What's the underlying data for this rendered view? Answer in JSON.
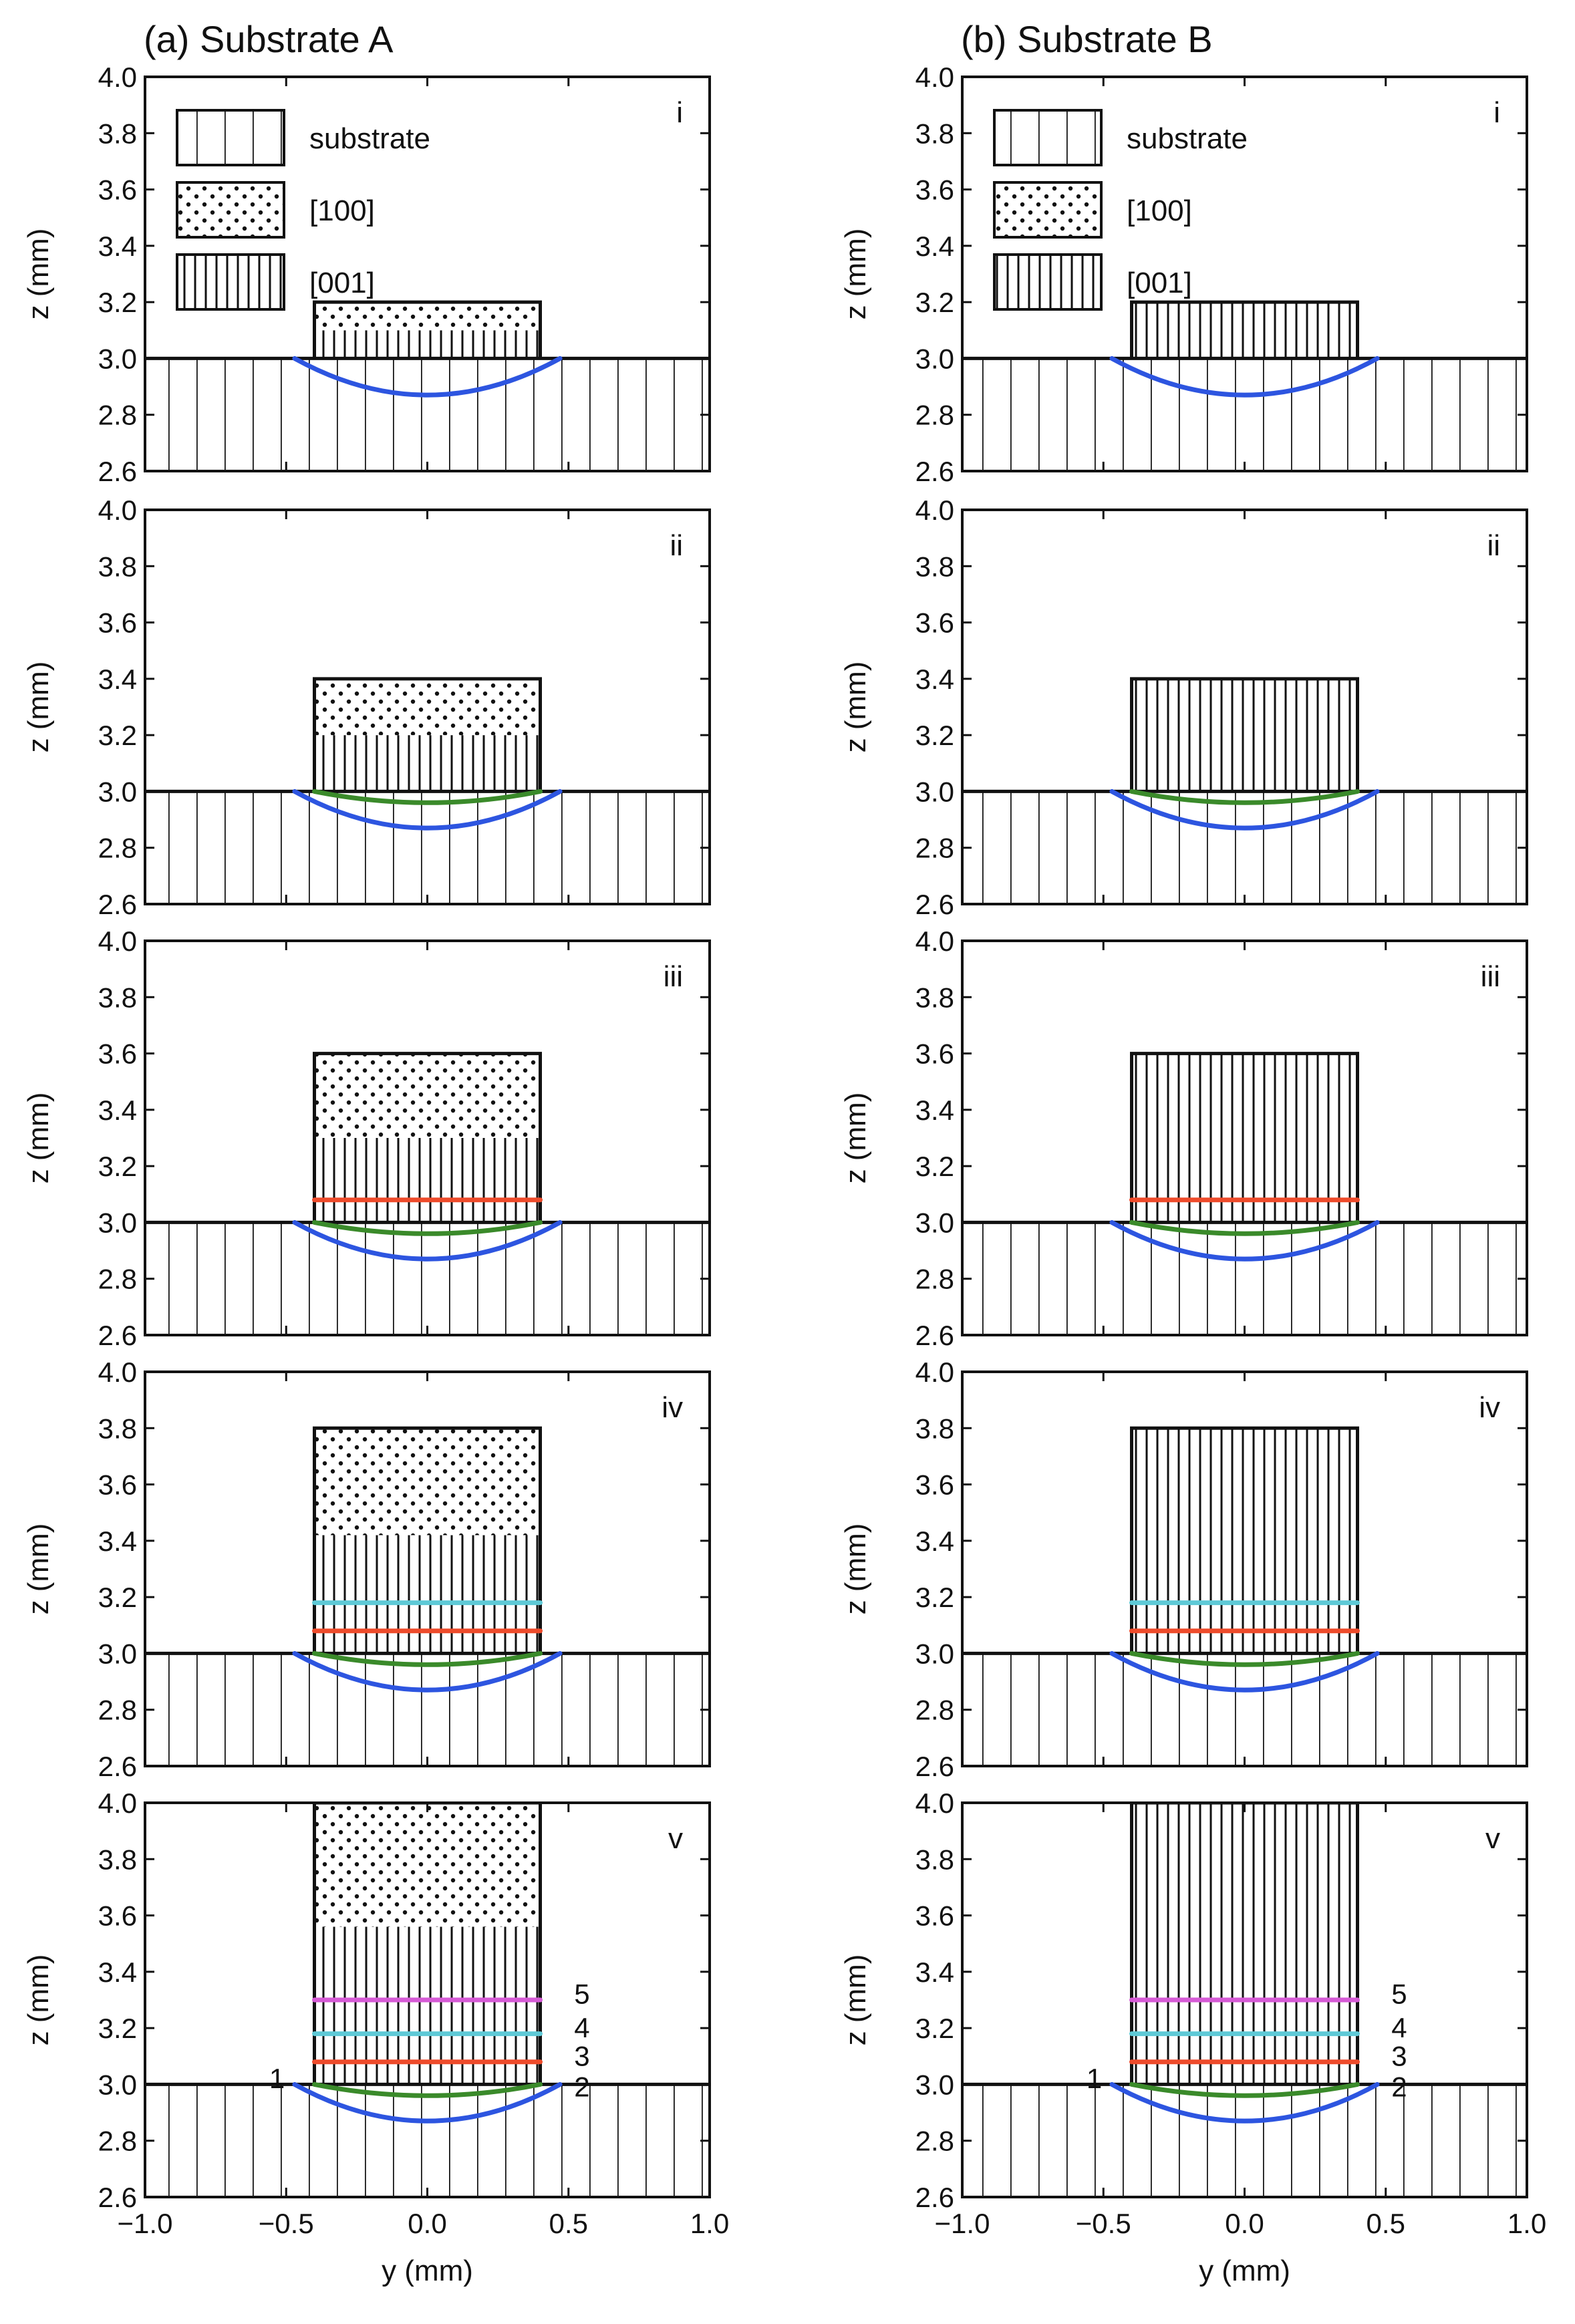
{
  "figure": {
    "columns": [
      {
        "title": "(a) Substrate A",
        "substrate": "A"
      },
      {
        "title": "(b) Substrate B",
        "substrate": "B"
      }
    ],
    "legend": [
      {
        "label": "substrate",
        "pattern": "substrate-vertical-wide"
      },
      {
        "label": "[100]",
        "pattern": "dots"
      },
      {
        "label": "[001]",
        "pattern": "vertical-dense"
      }
    ],
    "colors": {
      "line_1": "#2d55e0",
      "line_2": "#3a8a2a",
      "line_3": "#ee4b2b",
      "line_4": "#5ec9d6",
      "line_5": "#d65ad6"
    }
  },
  "chart_data": [
    {
      "type": "line",
      "column": "a",
      "row": "i",
      "panel_label": "i",
      "title": "",
      "xlabel": "",
      "ylabel": "z (mm)",
      "xlim": [
        -1.0,
        1.0
      ],
      "ylim": [
        2.6,
        4.0
      ],
      "xticks": [],
      "yticks": [
        "2.6",
        "2.8",
        "3.0",
        "3.2",
        "3.4",
        "3.6",
        "3.8",
        "4.0"
      ],
      "substrate_surface_z": 3.0,
      "deposit": {
        "y_range": [
          -0.4,
          0.4
        ],
        "top_z": 3.2,
        "layers": [
          {
            "pattern": "vertical-dense",
            "z": [
              3.0,
              3.1
            ]
          },
          {
            "pattern": "dots",
            "z": [
              3.1,
              3.2
            ]
          }
        ]
      },
      "series": [
        {
          "name": "",
          "color_key": "line_1",
          "x": [
            -0.47,
            -0.3,
            0.0,
            0.3,
            0.47
          ],
          "y": [
            3.0,
            2.91,
            2.87,
            2.91,
            3.0
          ]
        }
      ],
      "point_labels": []
    },
    {
      "type": "line",
      "column": "a",
      "row": "ii",
      "panel_label": "ii",
      "title": "",
      "xlabel": "",
      "ylabel": "z (mm)",
      "xlim": [
        -1.0,
        1.0
      ],
      "ylim": [
        2.6,
        4.0
      ],
      "xticks": [],
      "yticks": [
        "2.6",
        "2.8",
        "3.0",
        "3.2",
        "3.4",
        "3.6",
        "3.8",
        "4.0"
      ],
      "substrate_surface_z": 3.0,
      "deposit": {
        "y_range": [
          -0.4,
          0.4
        ],
        "top_z": 3.4,
        "layers": [
          {
            "pattern": "vertical-dense",
            "z": [
              3.0,
              3.2
            ]
          },
          {
            "pattern": "dots",
            "z": [
              3.2,
              3.4
            ]
          }
        ]
      },
      "series": [
        {
          "name": "",
          "color_key": "line_1",
          "x": [
            -0.47,
            -0.3,
            0.0,
            0.3,
            0.47
          ],
          "y": [
            3.0,
            2.91,
            2.87,
            2.91,
            3.0
          ]
        },
        {
          "name": "",
          "color_key": "line_2",
          "x": [
            -0.4,
            -0.2,
            0.0,
            0.2,
            0.4
          ],
          "y": [
            3.0,
            2.97,
            2.96,
            2.97,
            3.0
          ]
        }
      ],
      "point_labels": []
    },
    {
      "type": "line",
      "column": "a",
      "row": "iii",
      "panel_label": "iii",
      "title": "",
      "xlabel": "",
      "ylabel": "z (mm)",
      "xlim": [
        -1.0,
        1.0
      ],
      "ylim": [
        2.6,
        4.0
      ],
      "xticks": [],
      "yticks": [
        "2.6",
        "2.8",
        "3.0",
        "3.2",
        "3.4",
        "3.6",
        "3.8",
        "4.0"
      ],
      "substrate_surface_z": 3.0,
      "deposit": {
        "y_range": [
          -0.4,
          0.4
        ],
        "top_z": 3.6,
        "layers": [
          {
            "pattern": "vertical-dense",
            "z": [
              3.0,
              3.3
            ]
          },
          {
            "pattern": "dots",
            "z": [
              3.3,
              3.6
            ]
          }
        ]
      },
      "series": [
        {
          "name": "",
          "color_key": "line_1",
          "x": [
            -0.47,
            -0.3,
            0.0,
            0.3,
            0.47
          ],
          "y": [
            3.0,
            2.91,
            2.87,
            2.91,
            3.0
          ]
        },
        {
          "name": "",
          "color_key": "line_2",
          "x": [
            -0.4,
            -0.2,
            0.0,
            0.2,
            0.4
          ],
          "y": [
            3.0,
            2.97,
            2.96,
            2.97,
            3.0
          ]
        },
        {
          "name": "",
          "color_key": "line_3",
          "x": [
            -0.4,
            0.4
          ],
          "y": [
            3.08,
            3.08
          ]
        }
      ],
      "point_labels": []
    },
    {
      "type": "line",
      "column": "a",
      "row": "iv",
      "panel_label": "iv",
      "title": "",
      "xlabel": "",
      "ylabel": "z (mm)",
      "xlim": [
        -1.0,
        1.0
      ],
      "ylim": [
        2.6,
        4.0
      ],
      "xticks": [],
      "yticks": [
        "2.6",
        "2.8",
        "3.0",
        "3.2",
        "3.4",
        "3.6",
        "3.8",
        "4.0"
      ],
      "substrate_surface_z": 3.0,
      "deposit": {
        "y_range": [
          -0.4,
          0.4
        ],
        "top_z": 3.8,
        "layers": [
          {
            "pattern": "vertical-dense",
            "z": [
              3.0,
              3.42
            ]
          },
          {
            "pattern": "dots",
            "z": [
              3.42,
              3.8
            ]
          }
        ]
      },
      "series": [
        {
          "name": "",
          "color_key": "line_1",
          "x": [
            -0.47,
            -0.3,
            0.0,
            0.3,
            0.47
          ],
          "y": [
            3.0,
            2.91,
            2.87,
            2.91,
            3.0
          ]
        },
        {
          "name": "",
          "color_key": "line_2",
          "x": [
            -0.4,
            -0.2,
            0.0,
            0.2,
            0.4
          ],
          "y": [
            3.0,
            2.97,
            2.96,
            2.97,
            3.0
          ]
        },
        {
          "name": "",
          "color_key": "line_3",
          "x": [
            -0.4,
            0.4
          ],
          "y": [
            3.08,
            3.08
          ]
        },
        {
          "name": "",
          "color_key": "line_4",
          "x": [
            -0.4,
            0.4
          ],
          "y": [
            3.18,
            3.18
          ]
        }
      ],
      "point_labels": []
    },
    {
      "type": "line",
      "column": "a",
      "row": "v",
      "panel_label": "v",
      "title": "",
      "xlabel": "y (mm)",
      "ylabel": "z (mm)",
      "xlim": [
        -1.0,
        1.0
      ],
      "ylim": [
        2.6,
        4.0
      ],
      "xticks": [
        "−1.0",
        "−0.5",
        "0.0",
        "0.5",
        "1.0"
      ],
      "yticks": [
        "2.6",
        "2.8",
        "3.0",
        "3.2",
        "3.4",
        "3.6",
        "3.8",
        "4.0"
      ],
      "substrate_surface_z": 3.0,
      "deposit": {
        "y_range": [
          -0.4,
          0.4
        ],
        "top_z": 4.0,
        "layers": [
          {
            "pattern": "vertical-dense",
            "z": [
              3.0,
              3.56
            ]
          },
          {
            "pattern": "dots",
            "z": [
              3.56,
              4.0
            ]
          }
        ]
      },
      "series": [
        {
          "name": "",
          "color_key": "line_1",
          "x": [
            -0.47,
            -0.3,
            0.0,
            0.3,
            0.47
          ],
          "y": [
            3.0,
            2.91,
            2.87,
            2.91,
            3.0
          ]
        },
        {
          "name": "",
          "color_key": "line_2",
          "x": [
            -0.4,
            -0.2,
            0.0,
            0.2,
            0.4
          ],
          "y": [
            3.0,
            2.97,
            2.96,
            2.97,
            3.0
          ]
        },
        {
          "name": "",
          "color_key": "line_3",
          "x": [
            -0.4,
            0.4
          ],
          "y": [
            3.08,
            3.08
          ]
        },
        {
          "name": "",
          "color_key": "line_4",
          "x": [
            -0.4,
            0.4
          ],
          "y": [
            3.18,
            3.18
          ]
        },
        {
          "name": "",
          "color_key": "line_5",
          "x": [
            -0.4,
            0.4
          ],
          "y": [
            3.3,
            3.3
          ]
        }
      ],
      "point_labels": [
        {
          "text": "1",
          "x": -0.56,
          "y": 3.02
        },
        {
          "text": "2",
          "x": 0.52,
          "y": 2.99
        },
        {
          "text": "3",
          "x": 0.52,
          "y": 3.1
        },
        {
          "text": "4",
          "x": 0.52,
          "y": 3.2
        },
        {
          "text": "5",
          "x": 0.52,
          "y": 3.32
        }
      ]
    },
    {
      "type": "line",
      "column": "b",
      "row": "i",
      "panel_label": "i",
      "title": "",
      "xlabel": "",
      "ylabel": "z (mm)",
      "xlim": [
        -1.0,
        1.0
      ],
      "ylim": [
        2.6,
        4.0
      ],
      "xticks": [],
      "yticks": [
        "2.6",
        "2.8",
        "3.0",
        "3.2",
        "3.4",
        "3.6",
        "3.8",
        "4.0"
      ],
      "substrate_surface_z": 3.0,
      "deposit": {
        "y_range": [
          -0.4,
          0.4
        ],
        "top_z": 3.2,
        "layers": [
          {
            "pattern": "vertical-dense",
            "z": [
              3.0,
              3.2
            ]
          }
        ]
      },
      "series": [
        {
          "name": "",
          "color_key": "line_1",
          "x": [
            -0.47,
            -0.3,
            0.0,
            0.3,
            0.47
          ],
          "y": [
            3.0,
            2.91,
            2.87,
            2.91,
            3.0
          ]
        }
      ],
      "point_labels": []
    },
    {
      "type": "line",
      "column": "b",
      "row": "ii",
      "panel_label": "ii",
      "title": "",
      "xlabel": "",
      "ylabel": "z (mm)",
      "xlim": [
        -1.0,
        1.0
      ],
      "ylim": [
        2.6,
        4.0
      ],
      "xticks": [],
      "yticks": [
        "2.6",
        "2.8",
        "3.0",
        "3.2",
        "3.4",
        "3.6",
        "3.8",
        "4.0"
      ],
      "substrate_surface_z": 3.0,
      "deposit": {
        "y_range": [
          -0.4,
          0.4
        ],
        "top_z": 3.4,
        "layers": [
          {
            "pattern": "vertical-dense",
            "z": [
              3.0,
              3.4
            ]
          }
        ]
      },
      "series": [
        {
          "name": "",
          "color_key": "line_1",
          "x": [
            -0.47,
            -0.3,
            0.0,
            0.3,
            0.47
          ],
          "y": [
            3.0,
            2.91,
            2.87,
            2.91,
            3.0
          ]
        },
        {
          "name": "",
          "color_key": "line_2",
          "x": [
            -0.4,
            -0.2,
            0.0,
            0.2,
            0.4
          ],
          "y": [
            3.0,
            2.97,
            2.96,
            2.97,
            3.0
          ]
        }
      ],
      "point_labels": []
    },
    {
      "type": "line",
      "column": "b",
      "row": "iii",
      "panel_label": "iii",
      "title": "",
      "xlabel": "",
      "ylabel": "z (mm)",
      "xlim": [
        -1.0,
        1.0
      ],
      "ylim": [
        2.6,
        4.0
      ],
      "xticks": [],
      "yticks": [
        "2.6",
        "2.8",
        "3.0",
        "3.2",
        "3.4",
        "3.6",
        "3.8",
        "4.0"
      ],
      "substrate_surface_z": 3.0,
      "deposit": {
        "y_range": [
          -0.4,
          0.4
        ],
        "top_z": 3.6,
        "layers": [
          {
            "pattern": "vertical-dense",
            "z": [
              3.0,
              3.6
            ]
          }
        ]
      },
      "series": [
        {
          "name": "",
          "color_key": "line_1",
          "x": [
            -0.47,
            -0.3,
            0.0,
            0.3,
            0.47
          ],
          "y": [
            3.0,
            2.91,
            2.87,
            2.91,
            3.0
          ]
        },
        {
          "name": "",
          "color_key": "line_2",
          "x": [
            -0.4,
            -0.2,
            0.0,
            0.2,
            0.4
          ],
          "y": [
            3.0,
            2.97,
            2.96,
            2.97,
            3.0
          ]
        },
        {
          "name": "",
          "color_key": "line_3",
          "x": [
            -0.4,
            0.4
          ],
          "y": [
            3.08,
            3.08
          ]
        }
      ],
      "point_labels": []
    },
    {
      "type": "line",
      "column": "b",
      "row": "iv",
      "panel_label": "iv",
      "title": "",
      "xlabel": "",
      "ylabel": "z (mm)",
      "xlim": [
        -1.0,
        1.0
      ],
      "ylim": [
        2.6,
        4.0
      ],
      "xticks": [],
      "yticks": [
        "2.6",
        "2.8",
        "3.0",
        "3.2",
        "3.4",
        "3.6",
        "3.8",
        "4.0"
      ],
      "substrate_surface_z": 3.0,
      "deposit": {
        "y_range": [
          -0.4,
          0.4
        ],
        "top_z": 3.8,
        "layers": [
          {
            "pattern": "vertical-dense",
            "z": [
              3.0,
              3.8
            ]
          }
        ]
      },
      "series": [
        {
          "name": "",
          "color_key": "line_1",
          "x": [
            -0.47,
            -0.3,
            0.0,
            0.3,
            0.47
          ],
          "y": [
            3.0,
            2.91,
            2.87,
            2.91,
            3.0
          ]
        },
        {
          "name": "",
          "color_key": "line_2",
          "x": [
            -0.4,
            -0.2,
            0.0,
            0.2,
            0.4
          ],
          "y": [
            3.0,
            2.97,
            2.96,
            2.97,
            3.0
          ]
        },
        {
          "name": "",
          "color_key": "line_3",
          "x": [
            -0.4,
            0.4
          ],
          "y": [
            3.08,
            3.08
          ]
        },
        {
          "name": "",
          "color_key": "line_4",
          "x": [
            -0.4,
            0.4
          ],
          "y": [
            3.18,
            3.18
          ]
        }
      ],
      "point_labels": []
    },
    {
      "type": "line",
      "column": "b",
      "row": "v",
      "panel_label": "v",
      "title": "",
      "xlabel": "y (mm)",
      "ylabel": "z (mm)",
      "xlim": [
        -1.0,
        1.0
      ],
      "ylim": [
        2.6,
        4.0
      ],
      "xticks": [
        "−1.0",
        "−0.5",
        "0.0",
        "0.5",
        "1.0"
      ],
      "yticks": [
        "2.6",
        "2.8",
        "3.0",
        "3.2",
        "3.4",
        "3.6",
        "3.8",
        "4.0"
      ],
      "substrate_surface_z": 3.0,
      "deposit": {
        "y_range": [
          -0.4,
          0.4
        ],
        "top_z": 4.0,
        "layers": [
          {
            "pattern": "vertical-dense",
            "z": [
              3.0,
              4.0
            ]
          }
        ]
      },
      "series": [
        {
          "name": "",
          "color_key": "line_1",
          "x": [
            -0.47,
            -0.3,
            0.0,
            0.3,
            0.47
          ],
          "y": [
            3.0,
            2.91,
            2.87,
            2.91,
            3.0
          ]
        },
        {
          "name": "",
          "color_key": "line_2",
          "x": [
            -0.4,
            -0.2,
            0.0,
            0.2,
            0.4
          ],
          "y": [
            3.0,
            2.97,
            2.96,
            2.97,
            3.0
          ]
        },
        {
          "name": "",
          "color_key": "line_3",
          "x": [
            -0.4,
            0.4
          ],
          "y": [
            3.08,
            3.08
          ]
        },
        {
          "name": "",
          "color_key": "line_4",
          "x": [
            -0.4,
            0.4
          ],
          "y": [
            3.18,
            3.18
          ]
        },
        {
          "name": "",
          "color_key": "line_5",
          "x": [
            -0.4,
            0.4
          ],
          "y": [
            3.3,
            3.3
          ]
        }
      ],
      "point_labels": [
        {
          "text": "1",
          "x": -0.56,
          "y": 3.02
        },
        {
          "text": "2",
          "x": 0.52,
          "y": 2.99
        },
        {
          "text": "3",
          "x": 0.52,
          "y": 3.1
        },
        {
          "text": "4",
          "x": 0.52,
          "y": 3.2
        },
        {
          "text": "5",
          "x": 0.52,
          "y": 3.32
        }
      ]
    }
  ]
}
